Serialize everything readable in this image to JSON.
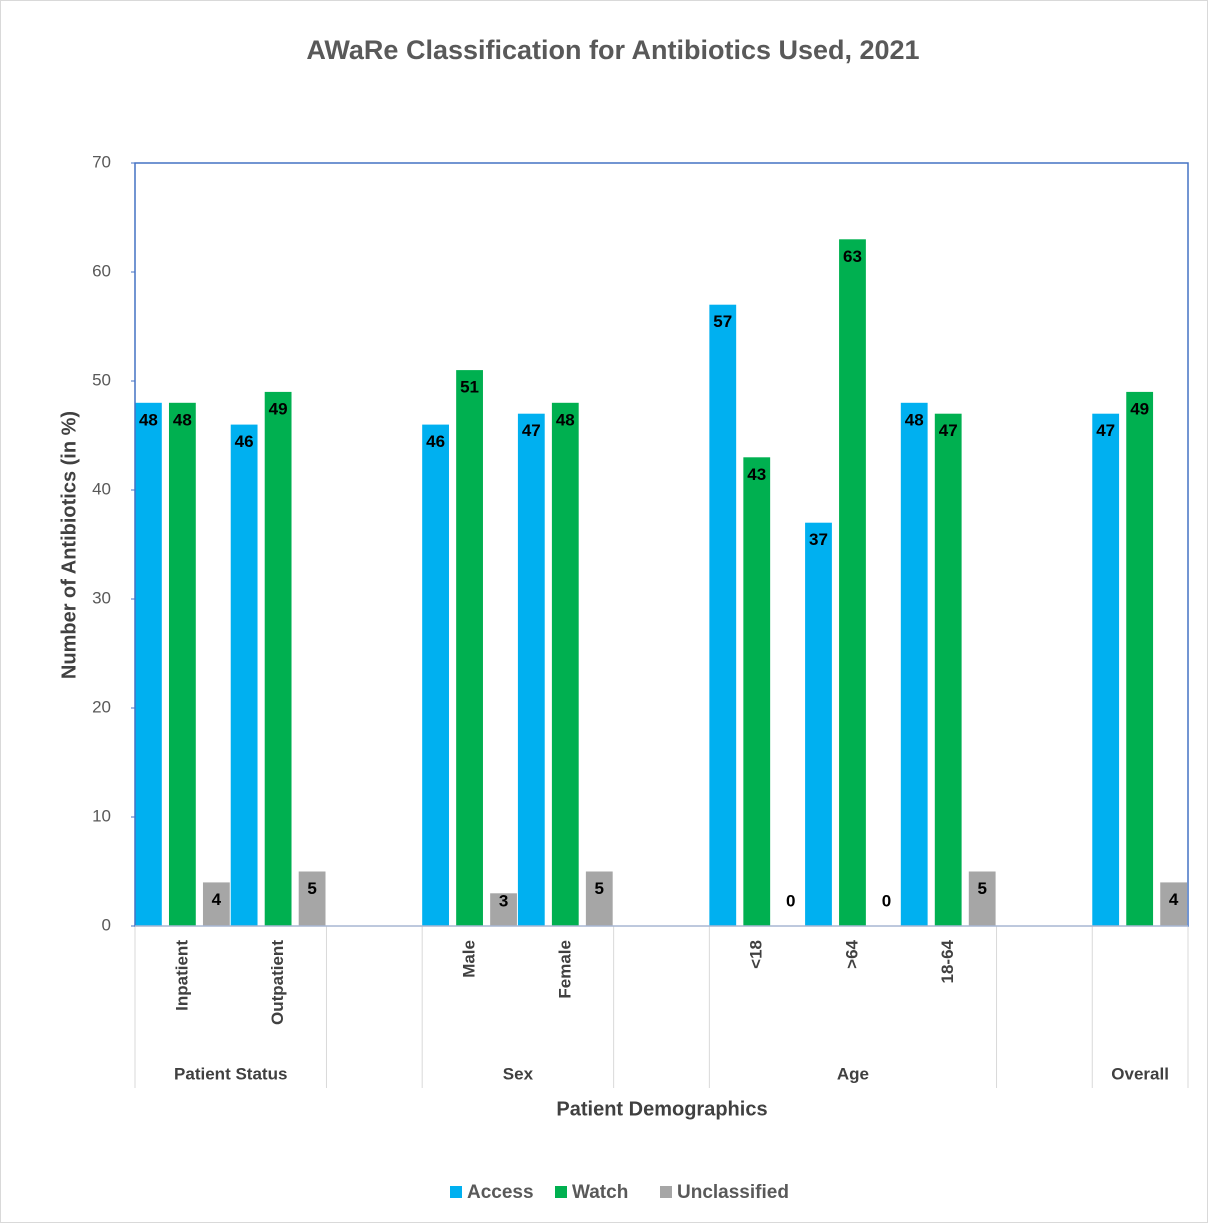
{
  "chart_data": {
    "type": "bar",
    "title": "AWaRe Classification for Antibiotics Used, 2021",
    "x_label": "Patient Demographics",
    "y_label": "Number of Antibiotics (in %)",
    "categories": [
      "Inpatient",
      "Outpatient",
      null,
      "Male",
      "Female",
      null,
      "<18",
      ">64",
      "18-64",
      null,
      null
    ],
    "category_groups": [
      "Patient Status",
      "Patient Status",
      null,
      "Sex",
      "Sex",
      null,
      "Age",
      "Age",
      "Age",
      null,
      "Overall"
    ],
    "series": [
      {
        "name": "Access",
        "color": "#00b0f0",
        "values": [
          48,
          46,
          null,
          46,
          47,
          null,
          57,
          37,
          48,
          null,
          47
        ]
      },
      {
        "name": "Watch",
        "color": "#00b050",
        "values": [
          48,
          49,
          null,
          51,
          48,
          null,
          43,
          63,
          47,
          null,
          49
        ]
      },
      {
        "name": "Unclassified",
        "color": "#a6a6a6",
        "values": [
          4,
          5,
          null,
          3,
          5,
          null,
          0,
          0,
          5,
          null,
          4
        ]
      }
    ],
    "ylim": [
      0,
      70
    ],
    "yticks": [
      0,
      10,
      20,
      30,
      40,
      50,
      60,
      70
    ],
    "legend": "bottom"
  }
}
